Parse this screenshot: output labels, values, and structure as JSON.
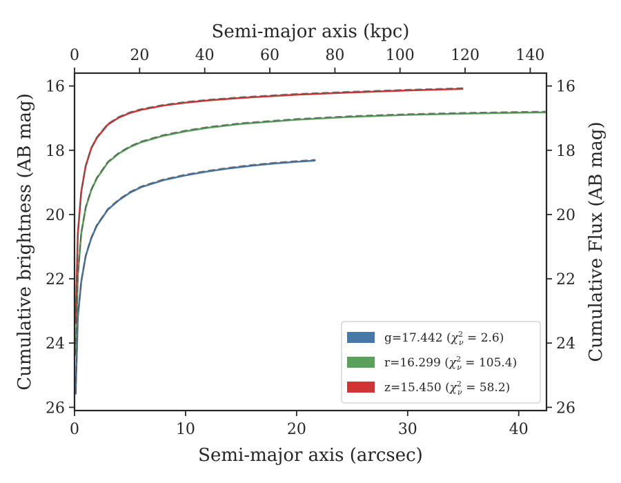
{
  "chart_data": {
    "type": "line",
    "xlabel": "Semi-major axis (arcsec)",
    "x2label": "Semi-major axis (kpc)",
    "ylabel": "Cumulative brightness (AB mag)",
    "y2label": "Cumulative Flux (AB mag)",
    "xlim": [
      0,
      42.5
    ],
    "x2lim": [
      0,
      145
    ],
    "ylim": [
      26.1,
      15.6
    ],
    "y_inverted": true,
    "x_ticks": [
      "0",
      "10",
      "20",
      "30",
      "40"
    ],
    "x_tick_values": [
      0,
      10,
      20,
      30,
      40
    ],
    "x2_ticks": [
      "0",
      "20",
      "40",
      "60",
      "80",
      "100",
      "120",
      "140"
    ],
    "x2_tick_values": [
      0,
      20,
      40,
      60,
      80,
      100,
      120,
      140
    ],
    "y_ticks": [
      "16",
      "18",
      "20",
      "22",
      "24",
      "26"
    ],
    "y_tick_values": [
      16,
      18,
      20,
      22,
      24,
      26
    ],
    "grid": false,
    "legend_position": "bottom-right",
    "series": [
      {
        "name": "g",
        "legend_label": "g=17.442 (χ²ν = 2.6)",
        "legend_main": "g=17.442 (",
        "legend_chi": "χ",
        "legend_sup": "2",
        "legend_sub": "ν",
        "legend_tail": " = 2.6)",
        "color": "#4878a8",
        "x": [
          0.1,
          0.3,
          0.6,
          1,
          1.5,
          2,
          3,
          4,
          5,
          6,
          8,
          10,
          12,
          14,
          16,
          18,
          20,
          21.7
        ],
        "y": [
          25.6,
          23.2,
          22.1,
          21.3,
          20.75,
          20.35,
          19.85,
          19.55,
          19.32,
          19.15,
          18.93,
          18.78,
          18.66,
          18.56,
          18.48,
          18.41,
          18.36,
          18.32
        ]
      },
      {
        "name": "r",
        "legend_label": "r=16.299 (χ²ν = 105.4)",
        "legend_main": "r=16.299 (",
        "legend_chi": "χ",
        "legend_sup": "2",
        "legend_sub": "ν",
        "legend_tail": " = 105.4)",
        "color": "#5aa05a",
        "x": [
          0.1,
          0.3,
          0.6,
          1,
          1.5,
          2,
          3,
          4,
          5,
          6,
          8,
          10,
          12,
          15,
          20,
          25,
          30,
          35,
          40,
          42.5
        ],
        "y": [
          24.4,
          21.9,
          20.6,
          19.8,
          19.25,
          18.88,
          18.38,
          18.1,
          17.9,
          17.75,
          17.55,
          17.41,
          17.3,
          17.18,
          17.05,
          16.96,
          16.9,
          16.86,
          16.83,
          16.82
        ]
      },
      {
        "name": "z",
        "legend_label": "z=15.450 (χ²ν = 58.2)",
        "legend_main": "z=15.450 (",
        "legend_chi": "χ",
        "legend_sup": "2",
        "legend_sub": "ν",
        "legend_tail": " = 58.2)",
        "color": "#d03535",
        "x": [
          0.1,
          0.3,
          0.6,
          1,
          1.5,
          2,
          3,
          4,
          5,
          6,
          8,
          10,
          12,
          15,
          20,
          25,
          30,
          35
        ],
        "y": [
          23.4,
          20.6,
          19.3,
          18.5,
          17.95,
          17.62,
          17.2,
          16.98,
          16.84,
          16.74,
          16.61,
          16.52,
          16.45,
          16.37,
          16.27,
          16.2,
          16.14,
          16.09
        ]
      }
    ],
    "model_style": "dashed gray overlay matching each series"
  }
}
